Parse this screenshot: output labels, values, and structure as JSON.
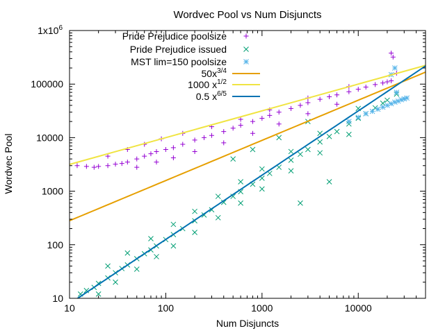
{
  "chart_data": {
    "type": "scatter",
    "title": "Wordvec Pool vs Num Disjuncts",
    "xlabel": "Num Disjuncts",
    "ylabel": "Wordvec Pool",
    "x_scale": "log",
    "y_scale": "log",
    "xlim": [
      10,
      50000
    ],
    "ylim": [
      10,
      1000000
    ],
    "grid": false,
    "legend_placement": "top-left",
    "x_ticks": [
      {
        "value": 10,
        "label": "10"
      },
      {
        "value": 100,
        "label": "100"
      },
      {
        "value": 1000,
        "label": "1000"
      },
      {
        "value": 10000,
        "label": "10000"
      }
    ],
    "y_ticks": [
      {
        "value": 10,
        "label": "10"
      },
      {
        "value": 100,
        "label": "100"
      },
      {
        "value": 1000,
        "label": "1000"
      },
      {
        "value": 10000,
        "label": "10000"
      },
      {
        "value": 100000,
        "label": "100000"
      },
      {
        "value": 1000000,
        "label": "1x10",
        "sup": "6"
      }
    ],
    "series": [
      {
        "name": "Pride Prejudice poolsize",
        "kind": "points",
        "marker": "plus",
        "color": "#9400d3",
        "points": [
          [
            12,
            3000
          ],
          [
            15,
            2900
          ],
          [
            18,
            2800
          ],
          [
            20,
            2900
          ],
          [
            25,
            3000
          ],
          [
            30,
            3200
          ],
          [
            35,
            3300
          ],
          [
            40,
            3500
          ],
          [
            50,
            4000
          ],
          [
            60,
            4500
          ],
          [
            70,
            5000
          ],
          [
            80,
            5500
          ],
          [
            100,
            6000
          ],
          [
            120,
            6500
          ],
          [
            150,
            7500
          ],
          [
            200,
            9000
          ],
          [
            250,
            10000
          ],
          [
            300,
            11000
          ],
          [
            400,
            13000
          ],
          [
            500,
            15000
          ],
          [
            600,
            17000
          ],
          [
            800,
            20000
          ],
          [
            1000,
            23000
          ],
          [
            1200,
            26000
          ],
          [
            1500,
            30000
          ],
          [
            2000,
            35000
          ],
          [
            2500,
            40000
          ],
          [
            3000,
            45000
          ],
          [
            4000,
            52000
          ],
          [
            5000,
            58000
          ],
          [
            6000,
            63000
          ],
          [
            8000,
            72000
          ],
          [
            10000,
            80000
          ],
          [
            12000,
            88000
          ],
          [
            15000,
            98000
          ],
          [
            18000,
            105000
          ],
          [
            20000,
            110000
          ],
          [
            22000,
            115000
          ],
          [
            25,
            4500
          ],
          [
            40,
            6000
          ],
          [
            60,
            7500
          ],
          [
            90,
            9500
          ],
          [
            150,
            12000
          ],
          [
            300,
            16000
          ],
          [
            600,
            22000
          ],
          [
            1200,
            33000
          ],
          [
            3000,
            55000
          ],
          [
            8000,
            90000
          ],
          [
            50,
            2800
          ],
          [
            80,
            3500
          ],
          [
            120,
            4200
          ],
          [
            200,
            5500
          ],
          [
            400,
            8000
          ],
          [
            800,
            12000
          ],
          [
            1500,
            18000
          ],
          [
            3000,
            28000
          ],
          [
            6000,
            42000
          ],
          [
            22000,
            380000
          ],
          [
            23000,
            320000
          ],
          [
            25000,
            160000
          ]
        ]
      },
      {
        "name": "Pride Prejudice issued",
        "kind": "points",
        "marker": "cross",
        "color": "#009e73",
        "points": [
          [
            13,
            12
          ],
          [
            15,
            14
          ],
          [
            18,
            16
          ],
          [
            20,
            19
          ],
          [
            25,
            24
          ],
          [
            30,
            30
          ],
          [
            35,
            36
          ],
          [
            40,
            42
          ],
          [
            50,
            55
          ],
          [
            60,
            68
          ],
          [
            70,
            80
          ],
          [
            80,
            95
          ],
          [
            100,
            125
          ],
          [
            120,
            155
          ],
          [
            150,
            200
          ],
          [
            200,
            280
          ],
          [
            250,
            360
          ],
          [
            300,
            450
          ],
          [
            400,
            620
          ],
          [
            500,
            800
          ],
          [
            600,
            980
          ],
          [
            800,
            1350
          ],
          [
            1000,
            1750
          ],
          [
            1200,
            2150
          ],
          [
            1500,
            2800
          ],
          [
            2000,
            3800
          ],
          [
            2500,
            4900
          ],
          [
            3000,
            6000
          ],
          [
            4000,
            8300
          ],
          [
            5000,
            10500
          ],
          [
            6000,
            13000
          ],
          [
            8000,
            18000
          ],
          [
            10000,
            23000
          ],
          [
            12000,
            28000
          ],
          [
            15000,
            36000
          ],
          [
            18000,
            44000
          ],
          [
            20000,
            50000
          ],
          [
            25000,
            65000
          ],
          [
            20,
            12
          ],
          [
            30,
            20
          ],
          [
            50,
            35
          ],
          [
            80,
            60
          ],
          [
            120,
            95
          ],
          [
            200,
            170
          ],
          [
            350,
            320
          ],
          [
            600,
            600
          ],
          [
            1000,
            1100
          ],
          [
            2000,
            2400
          ],
          [
            4000,
            5200
          ],
          [
            8000,
            11500
          ],
          [
            25,
            40
          ],
          [
            40,
            70
          ],
          [
            70,
            130
          ],
          [
            120,
            240
          ],
          [
            200,
            420
          ],
          [
            350,
            800
          ],
          [
            600,
            1500
          ],
          [
            1000,
            2600
          ],
          [
            2000,
            5500
          ],
          [
            4000,
            12000
          ],
          [
            10000,
            35000
          ],
          [
            500,
            4000
          ],
          [
            800,
            6000
          ],
          [
            1500,
            10000
          ],
          [
            3000,
            20000
          ],
          [
            2500,
            600
          ],
          [
            5000,
            1500
          ]
        ]
      },
      {
        "name": "MST lim=150 poolsize",
        "kind": "points",
        "marker": "star",
        "color": "#56b4e9",
        "points": [
          [
            8000,
            20000
          ],
          [
            10000,
            24000
          ],
          [
            12000,
            28000
          ],
          [
            14000,
            31000
          ],
          [
            16000,
            34000
          ],
          [
            18000,
            37000
          ],
          [
            20000,
            40000
          ],
          [
            22000,
            43000
          ],
          [
            24000,
            46000
          ],
          [
            26000,
            48000
          ],
          [
            28000,
            51000
          ],
          [
            30000,
            53000
          ],
          [
            32000,
            55000
          ],
          [
            25000,
            70000
          ],
          [
            22000,
            150000
          ],
          [
            24000,
            200000
          ]
        ]
      },
      {
        "name": "50x",
        "name_sup": "3/4",
        "kind": "function",
        "coef": 50,
        "exponent": 0.75,
        "color": "#e69f00"
      },
      {
        "name": "1000 x",
        "name_sup": "1/2",
        "kind": "function",
        "coef": 1000,
        "exponent": 0.5,
        "color": "#f0e442"
      },
      {
        "name": "0.5 x",
        "name_sup": "6/5",
        "kind": "function",
        "coef": 0.5,
        "exponent": 1.2,
        "color": "#0072b2"
      }
    ]
  }
}
